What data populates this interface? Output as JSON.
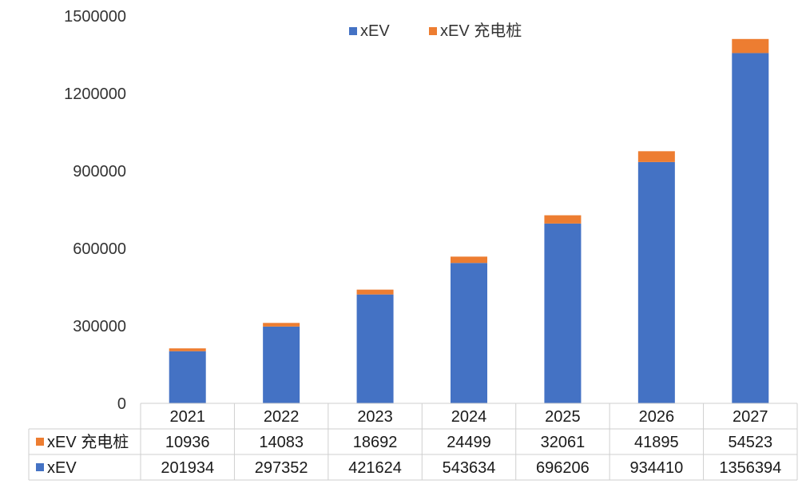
{
  "chart_data": {
    "type": "bar",
    "stacked": true,
    "categories": [
      "2021",
      "2022",
      "2023",
      "2024",
      "2025",
      "2026",
      "2027"
    ],
    "series": [
      {
        "name": "xEV",
        "color": "#4472C4",
        "values": [
          201934,
          297352,
          421624,
          543634,
          696206,
          934410,
          1356394
        ]
      },
      {
        "name": "xEV 充电桩",
        "color": "#ED7D31",
        "values": [
          10936,
          14083,
          18692,
          24499,
          32061,
          41895,
          54523
        ]
      }
    ],
    "ylim": [
      0,
      1500000
    ],
    "yticks": [
      0,
      300000,
      600000,
      900000,
      1200000,
      1500000
    ],
    "legend": {
      "position": "top-center",
      "order": [
        "xEV",
        "xEV 充电桩"
      ]
    },
    "data_table": {
      "rows": [
        {
          "label": "xEV 充电桩",
          "series": "xEV 充电桩"
        },
        {
          "label": "xEV",
          "series": "xEV"
        }
      ]
    },
    "title": "",
    "xlabel": "",
    "ylabel": ""
  }
}
